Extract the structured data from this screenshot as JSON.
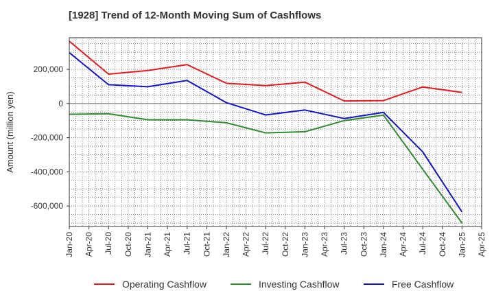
{
  "title": "[1928]  Trend of 12-Month Moving Sum of Cashflows",
  "chart_data": {
    "type": "line",
    "title": "[1928]  Trend of 12-Month Moving Sum of Cashflows",
    "xlabel": "",
    "ylabel": "Amount (million yen)",
    "x_tick_labels": [
      "Jan-20",
      "Apr-20",
      "Jul-20",
      "Oct-20",
      "Jan-21",
      "Apr-21",
      "Jul-21",
      "Oct-21",
      "Jan-22",
      "Apr-22",
      "Jul-22",
      "Oct-22",
      "Jan-23",
      "Apr-23",
      "Jul-23",
      "Oct-23",
      "Jan-24",
      "Apr-24",
      "Jul-24",
      "Oct-24",
      "Jan-25",
      "Apr-25"
    ],
    "y_ticks": [
      200000,
      0,
      -200000,
      -400000,
      -600000
    ],
    "y_tick_labels": [
      "200,000",
      "0",
      "-200,000",
      "-400,000",
      "-600,000"
    ],
    "ylim": [
      -720000,
      385000
    ],
    "grid": true,
    "legend_position": "bottom",
    "series": [
      {
        "name": "Operating Cashflow",
        "color": "#e8191d",
        "x": [
          "Jan-20",
          "Jul-20",
          "Jan-21",
          "Jul-21",
          "Jan-22",
          "Jul-22",
          "Jan-23",
          "Jul-23",
          "Jan-24",
          "Jul-24",
          "Jan-25"
        ],
        "values": [
          365000,
          172000,
          193000,
          228000,
          118000,
          105000,
          125000,
          15000,
          17000,
          97000,
          65000
        ]
      },
      {
        "name": "Investing Cashflow",
        "color": "#2e8b2e",
        "x": [
          "Jan-20",
          "Jul-20",
          "Jan-21",
          "Jul-21",
          "Jan-22",
          "Jul-22",
          "Jan-23",
          "Jul-23",
          "Jan-24",
          "Jul-24",
          "Jan-25"
        ],
        "values": [
          -63000,
          -60000,
          -95000,
          -95000,
          -113000,
          -172000,
          -165000,
          -100000,
          -68000,
          -385000,
          -700000
        ]
      },
      {
        "name": "Free Cashflow",
        "color": "#1212cc",
        "x": [
          "Jan-20",
          "Jul-20",
          "Jan-21",
          "Jul-21",
          "Jan-22",
          "Jul-22",
          "Jan-23",
          "Jul-23",
          "Jan-24",
          "Jul-24",
          "Jan-25"
        ],
        "values": [
          298000,
          110000,
          98000,
          135000,
          5000,
          -67000,
          -38000,
          -88000,
          -52000,
          -283000,
          -635000
        ]
      }
    ]
  }
}
